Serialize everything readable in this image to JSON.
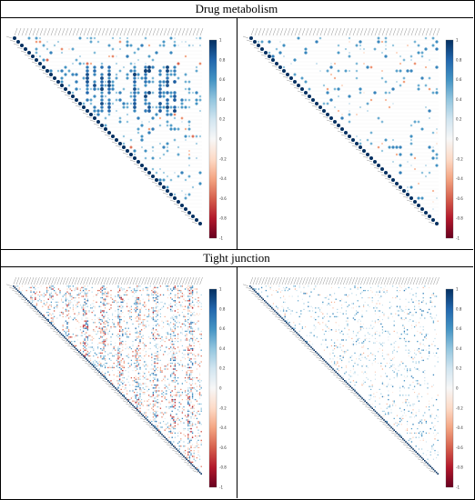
{
  "sections": [
    {
      "title": "Drug metabolism"
    },
    {
      "title": "Tight junction"
    }
  ],
  "chart_data": [
    {
      "type": "heatmap",
      "title": "",
      "n": 52,
      "style": "circles",
      "panel": "drug-left",
      "colorbar": {
        "min": -1,
        "max": 1,
        "ticks": [
          "1",
          "0.8",
          "0.6",
          "0.4",
          "0.2",
          "0",
          "-0.2",
          "-0.4",
          "-0.6",
          "-0.8",
          "-1"
        ]
      },
      "palette": {
        "neg": "#67001f",
        "zero": "#f7f7f7",
        "pos": "#053061"
      },
      "correlation_summary": "mostly positive correlations, dense block of strong values in upper-left rows"
    },
    {
      "type": "heatmap",
      "title": "",
      "n": 52,
      "style": "circles",
      "panel": "drug-right",
      "colorbar": {
        "min": -1,
        "max": 1,
        "ticks": [
          "1",
          "0.8",
          "0.6",
          "0.4",
          "0.2",
          "0",
          "-0.2",
          "-0.4",
          "-0.6",
          "-0.8",
          "-1"
        ]
      },
      "palette": {
        "neg": "#67001f",
        "zero": "#f7f7f7",
        "pos": "#053061"
      },
      "correlation_summary": "sparse weak correlations, diagonal dominant"
    },
    {
      "type": "heatmap",
      "title": "",
      "n": 130,
      "style": "squares",
      "panel": "tight-left",
      "colorbar": {
        "min": -1,
        "max": 1,
        "ticks": [
          "1",
          "0.8",
          "0.6",
          "0.4",
          "0.2",
          "0",
          "-0.2",
          "-0.4",
          "-0.6",
          "-0.8",
          "-1"
        ]
      },
      "palette": {
        "neg": "#67001f",
        "zero": "#f7f7f7",
        "pos": "#053061"
      },
      "correlation_summary": "dense striped pattern of positive and negative correlations"
    },
    {
      "type": "heatmap",
      "title": "",
      "n": 130,
      "style": "squares",
      "panel": "tight-right",
      "colorbar": {
        "min": -1,
        "max": 1,
        "ticks": [
          "1",
          "0.8",
          "0.6",
          "0.4",
          "0.2",
          "0",
          "-0.2",
          "-0.4",
          "-0.6",
          "-0.8",
          "-1"
        ]
      },
      "palette": {
        "neg": "#67001f",
        "zero": "#f7f7f7",
        "pos": "#053061"
      },
      "correlation_summary": "sparse weak correlations, diagonal dominant"
    }
  ]
}
